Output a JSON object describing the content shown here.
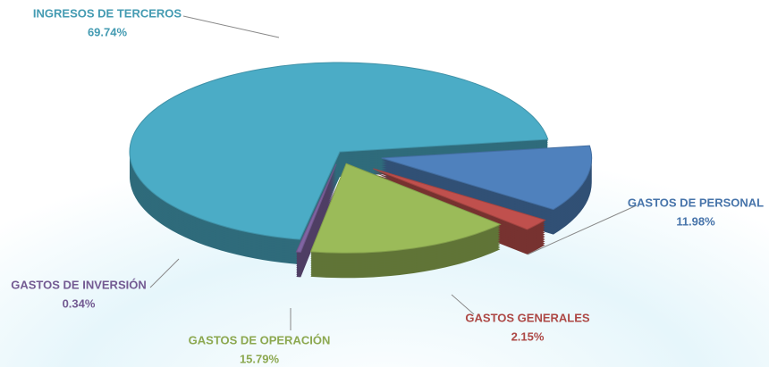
{
  "chart_data": {
    "type": "pie",
    "categories": [
      "INGRESOS DE TERCEROS",
      "GASTOS DE PERSONAL",
      "GASTOS GENERALES",
      "GASTOS DE OPERACIÓN",
      "GASTOS DE INVERSIÓN"
    ],
    "values": [
      69.74,
      11.98,
      2.15,
      15.79,
      0.34
    ],
    "value_labels": [
      "69.74%",
      "11.98%",
      "2.15%",
      "15.79%",
      "0.34%"
    ],
    "colors": [
      "#4bacc6",
      "#4f81bd",
      "#c0504d",
      "#9bbb59",
      "#8064a2"
    ]
  }
}
